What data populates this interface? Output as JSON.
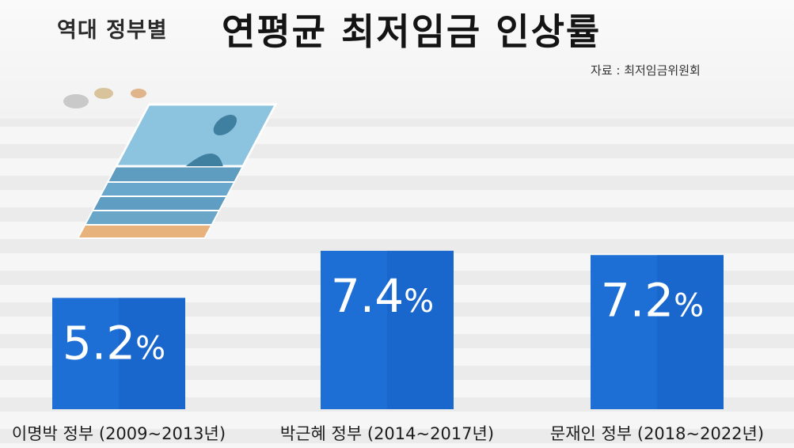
{
  "header": {
    "subtitle": "역대 정부별",
    "title": "연평균 최저임금 인상률",
    "source": "자료 : 최저임금위원회"
  },
  "colors": {
    "bar": "#1d6fd6",
    "bar_shade": "#1660c4",
    "value_text": "#ffffff"
  },
  "decoration": {
    "illustration": "money-stack-icon"
  },
  "chart_data": {
    "type": "bar",
    "title": "연평균 최저임금 인상률",
    "categories": [
      "이명박 정부 (2009~2013년)",
      "박근혜 정부 (2014~2017년)",
      "문재인 정부 (2018~2022년)"
    ],
    "values": [
      5.2,
      7.4,
      7.2
    ],
    "value_labels": [
      "5.2",
      "7.4",
      "7.2"
    ],
    "unit": "%",
    "xlabel": "",
    "ylabel": "",
    "ylim": [
      0,
      13.2
    ],
    "grid": false,
    "legend": "none"
  }
}
